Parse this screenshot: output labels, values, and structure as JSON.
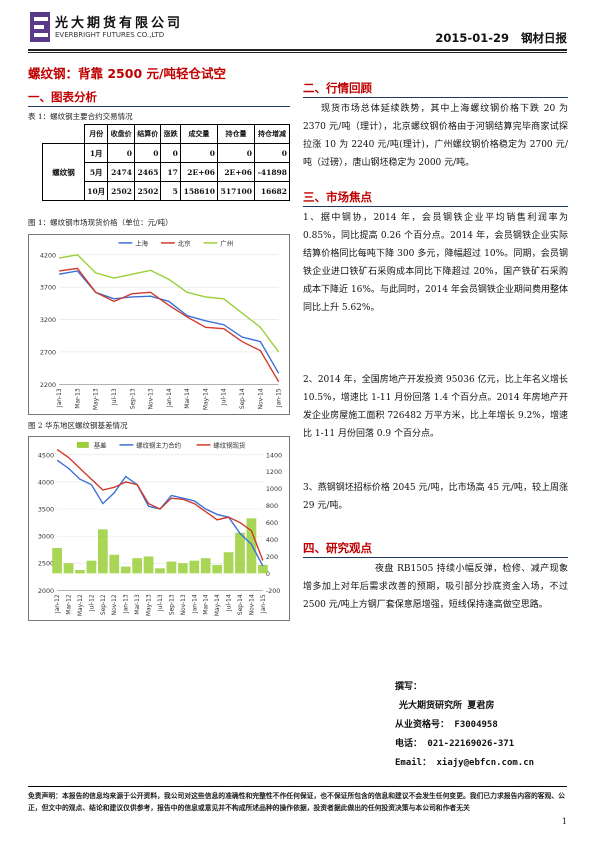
{
  "header": {
    "company_cn": "光大期货有限公司",
    "company_en": "EVERBRIGHT FUTURES CO.,LTD",
    "date": "2015-01-29",
    "report_name": "钢材日报"
  },
  "headline": "螺纹钢：背靠 2500 元/吨轻仓试空",
  "sections": {
    "s1": "一、图表分析",
    "s2": "二、行情回顾",
    "s3": "三、市场焦点",
    "s4": "四、研究观点"
  },
  "table1": {
    "caption": "表 1：螺纹钢主要合约交易情况",
    "headers": [
      "月份",
      "收盘价",
      "结算价",
      "涨跌",
      "成交量",
      "持仓量",
      "持仓增减"
    ],
    "product": "螺纹钢",
    "rows": [
      [
        "1月",
        "0",
        "0",
        "0",
        "0",
        "0",
        "0"
      ],
      [
        "5月",
        "2474",
        "2465",
        "17",
        "2E+06",
        "2E+06",
        "-41898"
      ],
      [
        "10月",
        "2502",
        "2502",
        "5",
        "158610",
        "517100",
        "16682"
      ]
    ]
  },
  "fig1": {
    "caption": "图 1：螺纹钢市场现货价格（单位：元/吨）"
  },
  "fig2": {
    "caption": "图 2 华东地区螺纹钢基差情况"
  },
  "chart_data": [
    {
      "type": "line",
      "x": [
        "Jan-13",
        "Mar-13",
        "May-13",
        "Jul-13",
        "Sep-13",
        "Nov-13",
        "Jan-14",
        "Mar-14",
        "May-14",
        "Jul-14",
        "Sep-14",
        "Nov-14",
        "Jan-15"
      ],
      "series": [
        {
          "name": "上海",
          "color": "#3a6fd8",
          "values": [
            3900,
            3950,
            3620,
            3520,
            3550,
            3560,
            3480,
            3260,
            3180,
            3120,
            2930,
            2860,
            2370
          ]
        },
        {
          "name": "北京",
          "color": "#d03a2a",
          "values": [
            3950,
            3990,
            3620,
            3480,
            3600,
            3620,
            3420,
            3240,
            3080,
            3060,
            2860,
            2720,
            2240
          ]
        },
        {
          "name": "广州",
          "color": "#9bcf3a",
          "values": [
            4150,
            4200,
            3920,
            3840,
            3900,
            3960,
            3820,
            3620,
            3550,
            3520,
            3300,
            3080,
            2700
          ]
        }
      ],
      "ylim": [
        2200,
        4200
      ],
      "yticks": [
        "2200",
        "2700",
        "3200",
        "3700",
        "4200"
      ],
      "legend": "top"
    },
    {
      "type": "line",
      "x": [
        "Jan-12",
        "Mar-12",
        "May-12",
        "Jul-12",
        "Sep-12",
        "Nov-12",
        "Jan-13",
        "Mar-13",
        "May-13",
        "Jul-13",
        "Sep-13",
        "Nov-13",
        "Jan-14",
        "Mar-14",
        "May-14",
        "Jul-14",
        "Sep-14",
        "Nov-14",
        "Jan-15"
      ],
      "series": [
        {
          "name": "基差",
          "color": "#9bcf3a",
          "axis": "right",
          "values": [
            300,
            120,
            40,
            150,
            520,
            220,
            80,
            180,
            200,
            60,
            140,
            120,
            150,
            180,
            100,
            250,
            480,
            650,
            100
          ]
        },
        {
          "name": "螺纹钢主力合约",
          "color": "#3a6fd8",
          "axis": "left",
          "values": [
            4400,
            4250,
            4050,
            3950,
            3600,
            3800,
            4100,
            3950,
            3550,
            3500,
            3750,
            3700,
            3650,
            3500,
            3400,
            3350,
            3050,
            2850,
            2450
          ]
        },
        {
          "name": "螺纹钢现货",
          "color": "#d03a2a",
          "axis": "left",
          "values": [
            4600,
            4450,
            4250,
            4050,
            3850,
            3900,
            4000,
            3950,
            3600,
            3500,
            3700,
            3680,
            3600,
            3450,
            3300,
            3350,
            3250,
            3100,
            2550
          ]
        }
      ],
      "ylim_left": [
        2000,
        4500
      ],
      "yticks_left": [
        "2000",
        "2500",
        "3000",
        "3500",
        "4000",
        "4500"
      ],
      "ylim_right": [
        -200,
        1400
      ],
      "yticks_right": [
        "-200",
        "0",
        "200",
        "400",
        "600",
        "800",
        "1000",
        "1200",
        "1400"
      ],
      "legend": "top"
    }
  ],
  "review": {
    "paragraph": "现货市场总体延续跌势，其中上海螺纹钢价格下跌 20 为 2370 元/吨（理计），北京螺纹钢价格由于河钢结算完毕商家试探拉涨 10 为 2240 元/吨(理计)，广州螺纹钢价格稳定为 2700 元/吨（过磅），唐山钢坯稳定为 2000 元/吨。"
  },
  "focus": {
    "items": [
      "1、据中钢协，2014 年，会员钢铁企业平均销售利润率为 0.85%，同比提高 0.26 个百分点。2014 年，会员钢铁企业实际结算价格同比每吨下降 300 多元，降幅超过 10%。同期，会员钢铁企业进口铁矿石采购成本同比下降超过 20%，国产铁矿石采购成本下降近 16%。与此同时，2014 年会员钢铁企业期间费用整体同比上升 5.62%。",
      "2、2014 年，全国房地产开发投资 95036 亿元，比上年名义增长 10.5%，增速比 1-11 月份回落 1.4 个百分点。2014 年房地产开发企业房屋施工面积 726482 万平方米，比上年增长 9.2%，增速比 1-11 月份回落 0.9 个百分点。",
      "3、燕钢钢坯招标价格 2045 元/吨，比市场高 45 元/吨，较上周涨 29 元/吨。"
    ]
  },
  "opinion": {
    "paragraph": "夜盘 RB1505 持续小幅反弹，检修、减产现象增多加上对年后需求改善的预期，吸引部分抄底资金入场，不过 2500 元/吨上方钢厂套保意愿增强，短线保持逢高做空思路。"
  },
  "author": {
    "label": "撰写：",
    "line1": "光大期货研究所 夏君房",
    "license": "从业资格号：  F3004958",
    "phone": "电话：  021-22169026-371",
    "email": "Email：  xiajy@ebfcn.com.cn"
  },
  "disclaimer": "免责声明：本报告的信息均来源于公开资料，我公司对这些信息的准确性和完整性不作任何保证，也不保证所包含的信息和建议不会发生任何变更。我们已力求报告内容的客观、公正，但文中的观点、结论和建议仅供参考，报告中的信息或意见并不构成所述品种的操作依据，投资者据此做出的任何投资决策与本公司和作者无关",
  "page_number": "1",
  "colors": {
    "accent_red": "#c00000",
    "logo_purple": "#5b3a8c"
  }
}
